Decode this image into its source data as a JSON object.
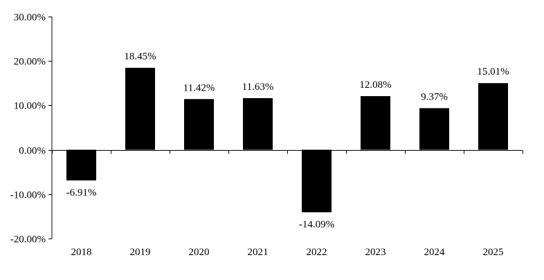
{
  "chart_data": {
    "type": "bar",
    "title": "",
    "xlabel": "",
    "ylabel": "",
    "categories": [
      "2018",
      "2019",
      "2020",
      "2021",
      "2022",
      "2023",
      "2024",
      "2025"
    ],
    "values": [
      -6.91,
      18.45,
      11.42,
      11.63,
      -14.09,
      12.08,
      9.37,
      15.01
    ],
    "value_labels": [
      "-6.91%",
      "18.45%",
      "11.42%",
      "11.63%",
      "-14.09%",
      "12.08%",
      "9.37%",
      "15.01%"
    ],
    "ylim": [
      -20,
      30
    ],
    "yticks": [
      -20,
      -10,
      0,
      10,
      20,
      30
    ],
    "ytick_labels": [
      "-20.00%",
      "-10.00%",
      "0.00%",
      "10.00%",
      "20.00%",
      "30.00%"
    ],
    "grid": false,
    "legend": "none",
    "bar_color": "#000000",
    "axis_color": "#000000"
  }
}
